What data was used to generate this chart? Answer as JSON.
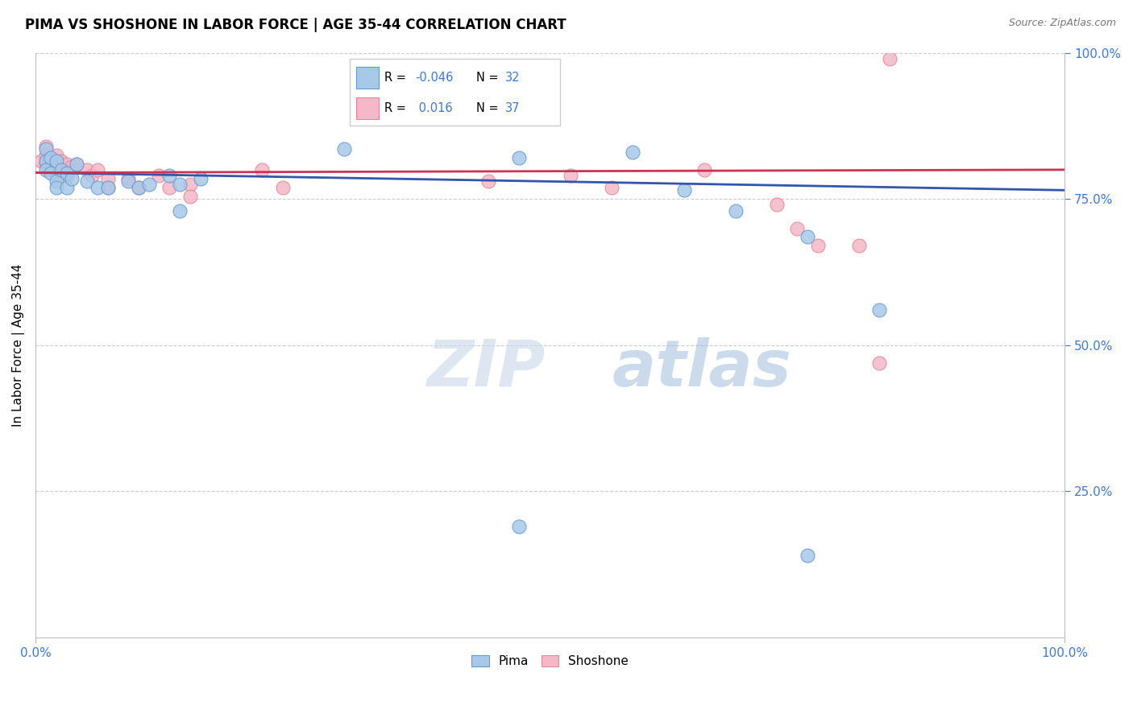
{
  "title": "PIMA VS SHOSHONE IN LABOR FORCE | AGE 35-44 CORRELATION CHART",
  "source": "Source: ZipAtlas.com",
  "ylabel": "In Labor Force | Age 35-44",
  "xlim": [
    0,
    1
  ],
  "ylim": [
    0,
    1
  ],
  "pima_color": "#a8c8e8",
  "pima_edge": "#6699cc",
  "shoshone_color": "#f4b8c8",
  "shoshone_edge": "#e08898",
  "trend_blue": "#3355aa",
  "trend_pink": "#cc3355",
  "grid_color": "#cccccc",
  "right_tick_color": "#4477cc",
  "background_color": "#ffffff",
  "fig_width": 14.06,
  "fig_height": 8.92,
  "dpi": 100,
  "pima_r": "-0.046",
  "pima_n": "32",
  "shoshone_r": "0.016",
  "shoshone_n": "37",
  "pima_x": [
    0.01,
    0.01,
    0.01,
    0.015,
    0.015,
    0.02,
    0.02,
    0.02,
    0.025,
    0.03,
    0.03,
    0.035,
    0.04,
    0.05,
    0.06,
    0.07,
    0.09,
    0.1,
    0.11,
    0.13,
    0.14,
    0.14,
    0.16,
    0.3,
    0.47,
    0.58,
    0.63,
    0.68,
    0.75,
    0.82,
    0.47,
    0.75
  ],
  "pima_y": [
    0.835,
    0.815,
    0.8,
    0.82,
    0.795,
    0.815,
    0.78,
    0.77,
    0.8,
    0.795,
    0.77,
    0.785,
    0.81,
    0.78,
    0.77,
    0.77,
    0.78,
    0.77,
    0.775,
    0.79,
    0.775,
    0.73,
    0.785,
    0.835,
    0.82,
    0.83,
    0.765,
    0.73,
    0.685,
    0.56,
    0.19,
    0.14
  ],
  "shoshone_x": [
    0.005,
    0.01,
    0.01,
    0.01,
    0.015,
    0.015,
    0.02,
    0.02,
    0.025,
    0.025,
    0.03,
    0.03,
    0.035,
    0.04,
    0.05,
    0.055,
    0.06,
    0.07,
    0.07,
    0.09,
    0.1,
    0.12,
    0.13,
    0.15,
    0.15,
    0.22,
    0.24,
    0.44,
    0.52,
    0.56,
    0.65,
    0.72,
    0.74,
    0.76,
    0.8,
    0.82,
    0.83
  ],
  "shoshone_y": [
    0.815,
    0.84,
    0.825,
    0.81,
    0.82,
    0.8,
    0.825,
    0.805,
    0.815,
    0.795,
    0.81,
    0.79,
    0.805,
    0.81,
    0.8,
    0.79,
    0.8,
    0.785,
    0.77,
    0.785,
    0.77,
    0.79,
    0.77,
    0.775,
    0.755,
    0.8,
    0.77,
    0.78,
    0.79,
    0.77,
    0.8,
    0.74,
    0.7,
    0.67,
    0.67,
    0.47,
    0.99
  ],
  "blue_trend_start_x": 0.0,
  "blue_trend_start_y": 0.795,
  "blue_trend_end_x": 1.0,
  "blue_trend_end_y": 0.765,
  "pink_trend_start_x": 0.0,
  "pink_trend_start_y": 0.795,
  "pink_trend_end_x": 1.0,
  "pink_trend_end_y": 0.8,
  "yticks": [
    0.25,
    0.5,
    0.75,
    1.0
  ],
  "ytick_labels": [
    "25.0%",
    "50.0%",
    "75.0%",
    "100.0%"
  ]
}
